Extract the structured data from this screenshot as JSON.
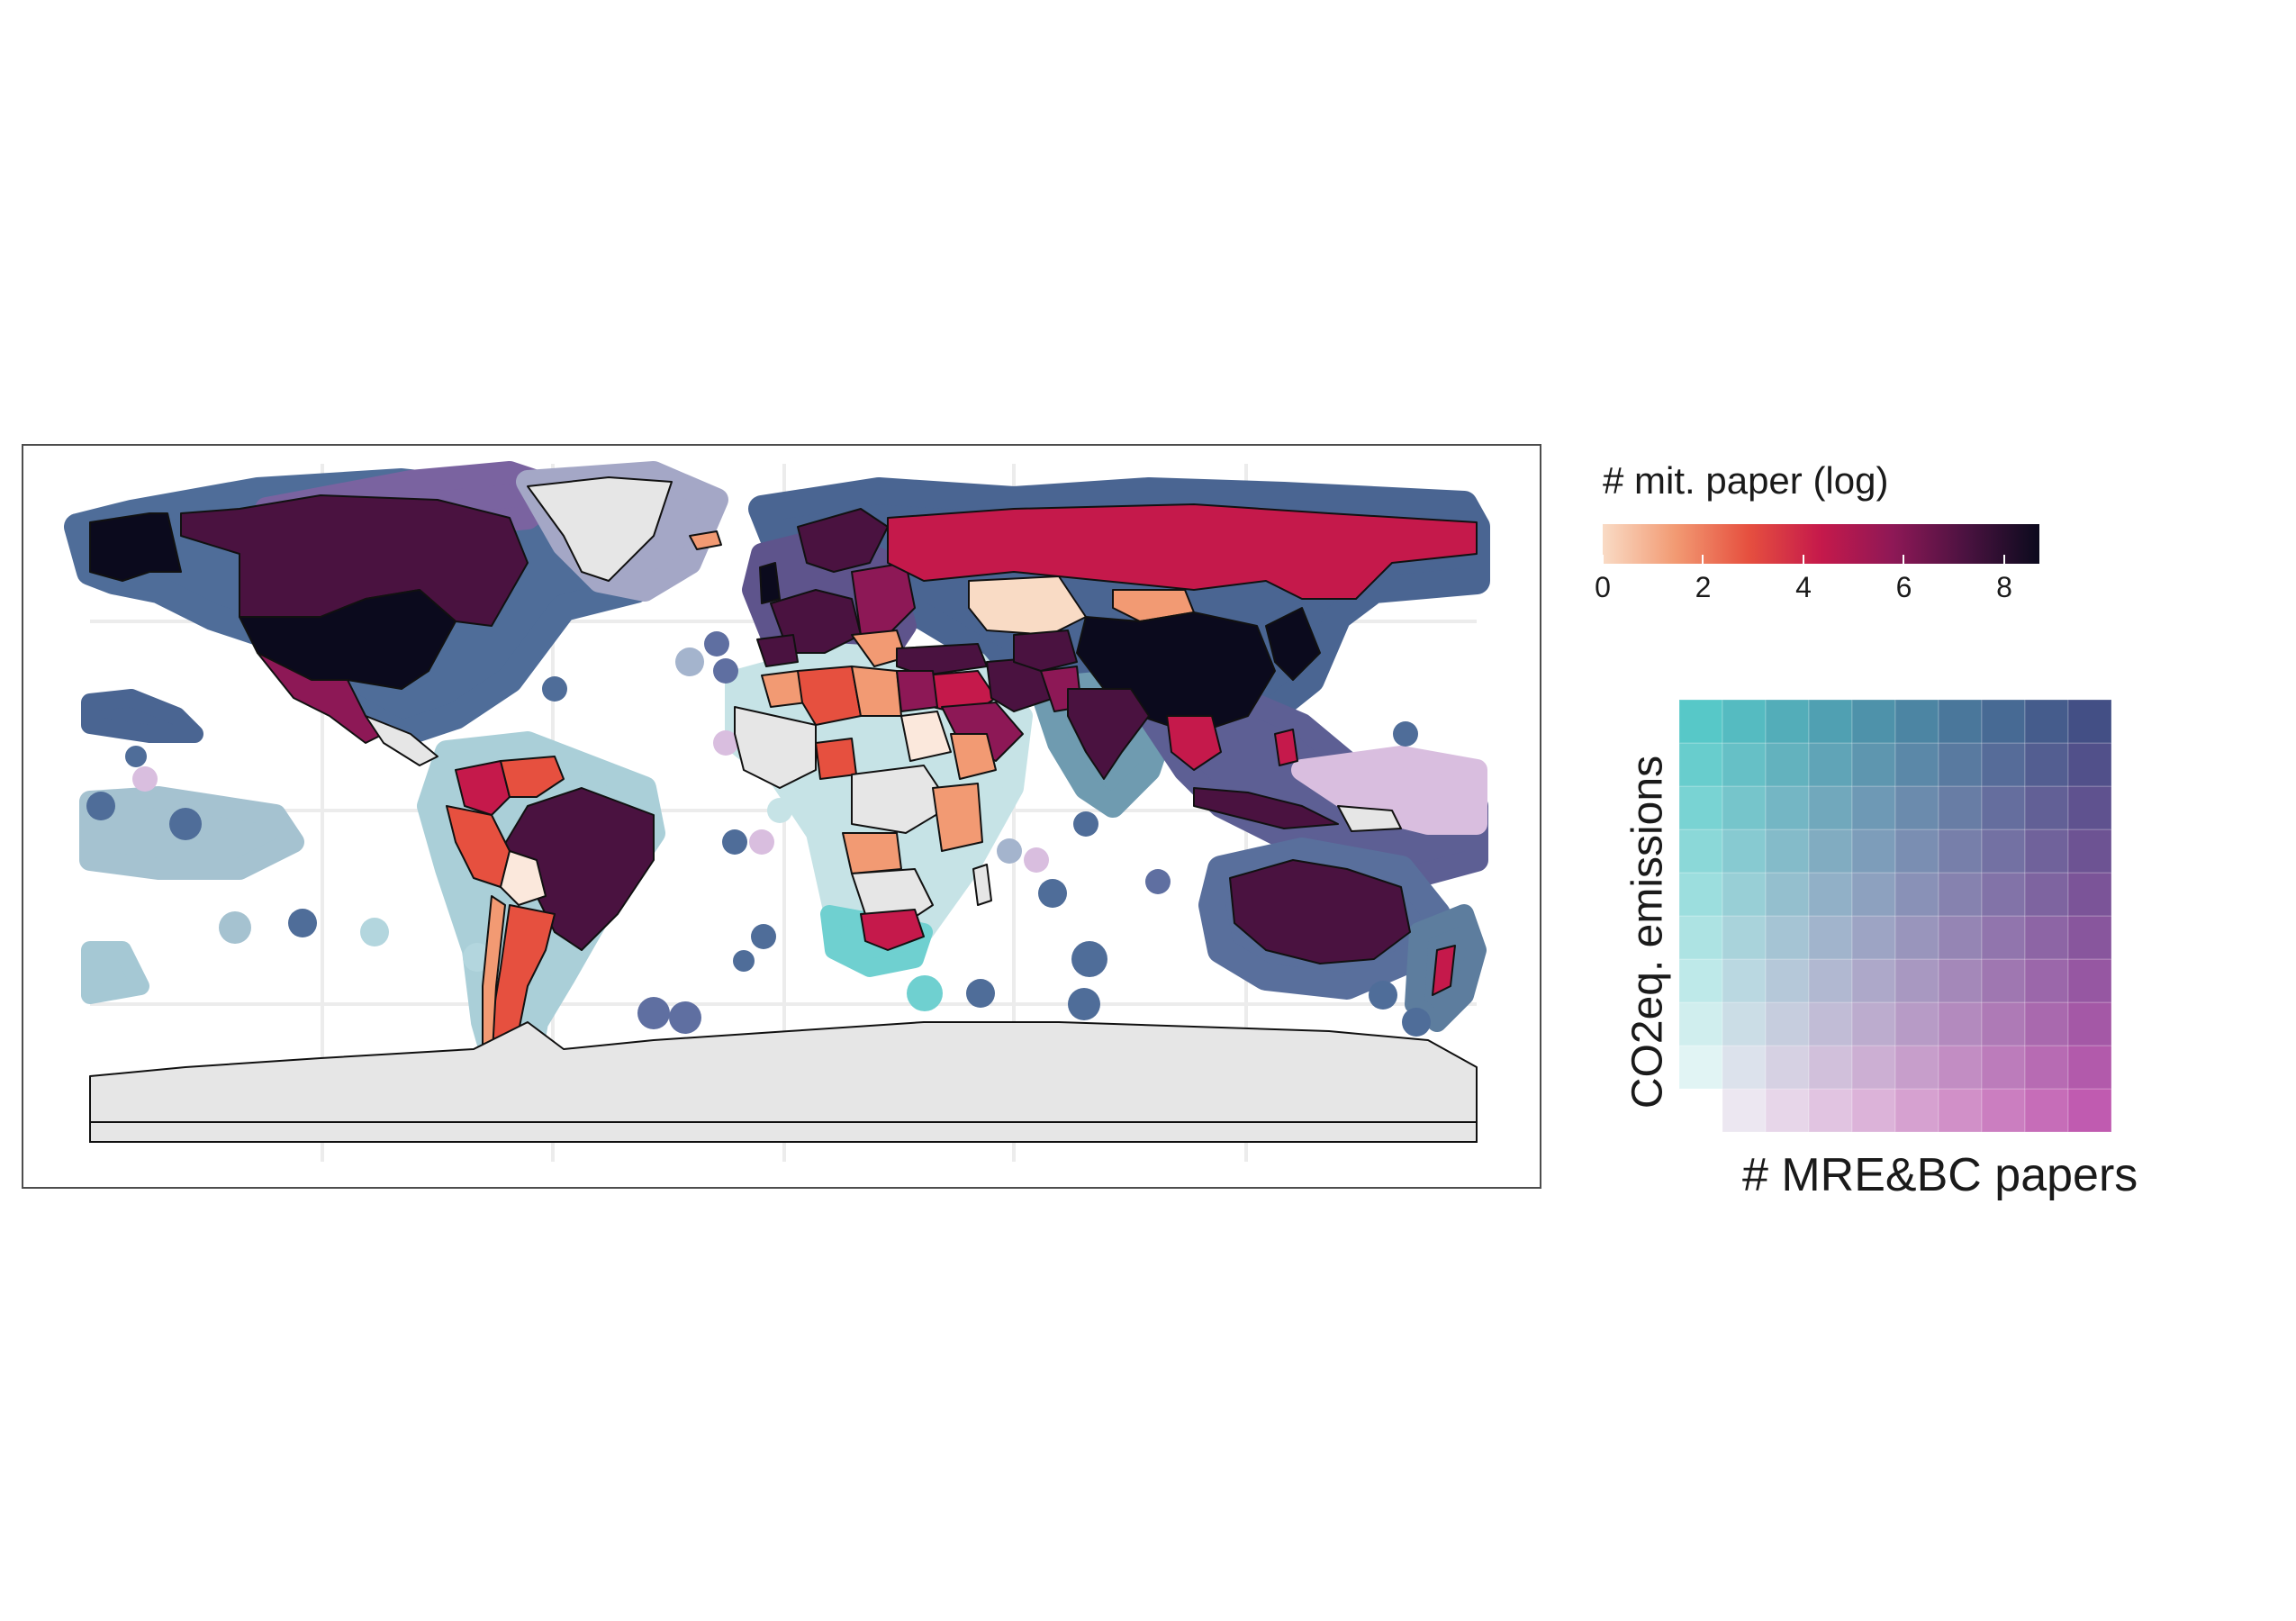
{
  "map": {
    "land_fill_no_data": "#e6e6e6",
    "water": "#ffffff",
    "graticule_color": "#ececec"
  },
  "legend_continuous": {
    "title": "# mit. paper (log)",
    "ticks": [
      "0",
      "2",
      "4",
      "6",
      "8"
    ],
    "tick_values": [
      0,
      2,
      4,
      6,
      8
    ],
    "range": [
      0,
      8.7
    ],
    "colors": [
      "#f9dbc5",
      "#f29a73",
      "#e6503f",
      "#c5194b",
      "#8d1856",
      "#4a1240",
      "#0b0a1d"
    ]
  },
  "legend_bivariate": {
    "y_label": "CO2eq. emissions",
    "x_label": "# MRE&BC papers",
    "size": 10,
    "colors": {
      "low_low": "#f2f9f9",
      "high_x_low_y": "#c05bb0",
      "low_x_high_y": "#57c8c8",
      "high_high": "#434f85"
    }
  }
}
